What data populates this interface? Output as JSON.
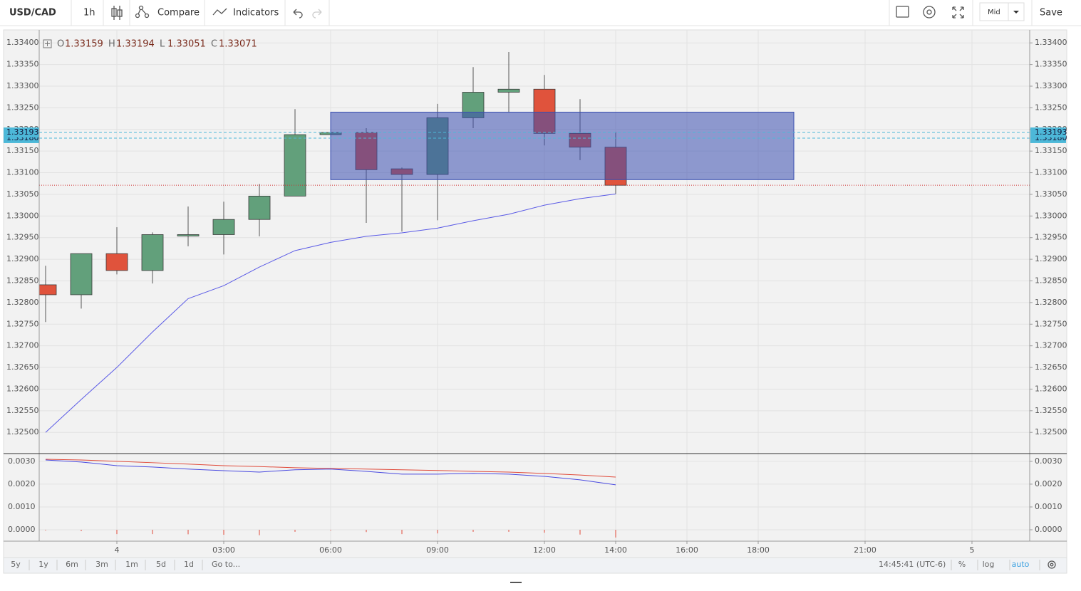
{
  "toolbar": {
    "symbol": "USD/CAD",
    "interval": "1h",
    "compare": "Compare",
    "indicators": "Indicators",
    "price_source": "Mid",
    "save": "Save"
  },
  "chart_data": [
    {
      "type": "candlestick",
      "x": [
        -2,
        -1,
        0,
        1,
        2,
        3,
        4,
        5,
        6,
        7,
        8,
        9,
        10,
        11,
        12,
        13,
        14
      ],
      "open": [
        1.32841,
        1.32818,
        1.32913,
        1.32874,
        1.32956,
        1.32957,
        1.32992,
        1.33046,
        1.33188,
        1.33193,
        1.33109,
        1.33096,
        1.33227,
        1.33286,
        1.33293,
        1.33191,
        1.33159
      ],
      "high": [
        1.32885,
        1.32913,
        1.32974,
        1.32962,
        1.33022,
        1.33033,
        1.33074,
        1.33247,
        1.33193,
        1.33203,
        1.33112,
        1.33259,
        1.33344,
        1.33379,
        1.33326,
        1.3327,
        1.33194
      ],
      "low": [
        1.32755,
        1.32786,
        1.32865,
        1.32844,
        1.3293,
        1.32911,
        1.32953,
        1.33046,
        1.33188,
        1.32984,
        1.32964,
        1.3299,
        1.33203,
        1.33239,
        1.33163,
        1.33129,
        1.33051
      ],
      "close": [
        1.32818,
        1.32913,
        1.32874,
        1.32957,
        1.32957,
        1.32992,
        1.33046,
        1.33188,
        1.33193,
        1.33107,
        1.33096,
        1.33227,
        1.33286,
        1.33293,
        1.33191,
        1.33159,
        1.33071
      ],
      "up_color": "#62a07b",
      "down_color": "#e0533c",
      "ma": {
        "color": "#5a5ae6",
        "values": [
          1.325,
          1.32576,
          1.3265,
          1.32732,
          1.32809,
          1.32839,
          1.32882,
          1.3292,
          1.32939,
          1.32953,
          1.32961,
          1.32972,
          1.32989,
          1.33004,
          1.33025,
          1.3304,
          1.33051
        ]
      },
      "rectangle": {
        "x": [
          6,
          19
        ],
        "y": [
          1.33084,
          1.3324
        ],
        "color": "#3a4fb0"
      },
      "price_lines": [
        {
          "value": 1.3318,
          "label": "1.33180",
          "color": "#4db8d8"
        },
        {
          "value": 1.33193,
          "color": "#4db8d8"
        }
      ],
      "close_line_color": "#d03030",
      "legend": [
        {
          "label": "O",
          "value": 1.33159
        },
        {
          "label": "H",
          "value": 1.33194
        },
        {
          "label": "L",
          "value": 1.33051
        },
        {
          "label": "C",
          "value": 1.33071
        }
      ],
      "xlim": [
        -2.18,
        25.62
      ],
      "ylim": [
        1.32451,
        1.3343
      ],
      "grid": true,
      "yticks": [
        {
          "value": 1.334,
          "label": "1.33400"
        },
        {
          "value": 1.3335,
          "label": "1.33350"
        },
        {
          "value": 1.333,
          "label": "1.33300"
        },
        {
          "value": 1.3325,
          "label": "1.33250"
        },
        {
          "value": 1.332,
          "label": "1.33200"
        },
        {
          "value": 1.3315,
          "label": "1.33150"
        },
        {
          "value": 1.331,
          "label": "1.33100"
        },
        {
          "value": 1.3305,
          "label": "1.33050"
        },
        {
          "value": 1.33,
          "label": "1.33000"
        },
        {
          "value": 1.3295,
          "label": "1.32950"
        },
        {
          "value": 1.329,
          "label": "1.32900"
        },
        {
          "value": 1.3285,
          "label": "1.32850"
        },
        {
          "value": 1.328,
          "label": "1.32800"
        },
        {
          "value": 1.3275,
          "label": "1.32750"
        },
        {
          "value": 1.327,
          "label": "1.32700"
        },
        {
          "value": 1.3265,
          "label": "1.32650"
        },
        {
          "value": 1.326,
          "label": "1.32600"
        },
        {
          "value": 1.3255,
          "label": "1.32550"
        },
        {
          "value": 1.325,
          "label": "1.32500"
        }
      ]
    },
    {
      "type": "macd",
      "x": [
        -2,
        -1,
        0,
        1,
        2,
        3,
        4,
        5,
        6,
        7,
        8,
        9,
        10,
        11,
        12,
        13,
        14
      ],
      "series": [
        {
          "color": "#e04a3a",
          "values": [
            0.00309,
            0.00306,
            0.003,
            0.00294,
            0.00288,
            0.00281,
            0.00277,
            0.00272,
            0.00269,
            0.00266,
            0.00263,
            0.0026,
            0.00256,
            0.00253,
            0.00247,
            0.0024,
            0.00231
          ]
        },
        {
          "color": "#4a4ae0",
          "values": [
            0.00306,
            0.00297,
            0.00281,
            0.00275,
            0.00266,
            0.00259,
            0.00253,
            0.00263,
            0.00266,
            0.00256,
            0.00244,
            0.00244,
            0.00247,
            0.00244,
            0.00234,
            0.00219,
            0.00197
          ]
        }
      ],
      "histogram": {
        "color": "#e04a3a",
        "values": [
          -3e-05,
          -6e-05,
          -0.00019,
          -0.00019,
          -0.0002,
          -0.00022,
          -0.00024,
          -9e-05,
          -3e-05,
          -0.0001,
          -0.00019,
          -0.00016,
          -9e-05,
          -9e-05,
          -0.00013,
          -0.00021,
          -0.00034
        ]
      },
      "xlim": [
        -2.18,
        25.62
      ],
      "ylim": [
        -0.0005,
        0.00334
      ],
      "grid": true,
      "yticks": [
        {
          "value": 0.003,
          "label": "0.0030"
        },
        {
          "value": 0.002,
          "label": "0.0020"
        },
        {
          "value": 0.001,
          "label": "0.0010"
        },
        {
          "value": 0,
          "label": "0.0000"
        }
      ],
      "xticks": [
        {
          "value": 0,
          "label": "4"
        },
        {
          "value": 3,
          "label": "03:00"
        },
        {
          "value": 6,
          "label": "06:00"
        },
        {
          "value": 9,
          "label": "09:00"
        },
        {
          "value": 12,
          "label": "12:00"
        },
        {
          "value": 14,
          "label": "14:00"
        },
        {
          "value": 16,
          "label": "16:00"
        },
        {
          "value": 18,
          "label": "18:00"
        },
        {
          "value": 21,
          "label": "21:00"
        },
        {
          "value": 24,
          "label": "5"
        }
      ]
    }
  ],
  "bottom_bar": {
    "ranges": [
      "5y",
      "1y",
      "6m",
      "3m",
      "1m",
      "5d",
      "1d"
    ],
    "goto": "Go to...",
    "clock": "14:45:41 (UTC-6)",
    "percent": "%",
    "log": "log",
    "auto": "auto"
  }
}
